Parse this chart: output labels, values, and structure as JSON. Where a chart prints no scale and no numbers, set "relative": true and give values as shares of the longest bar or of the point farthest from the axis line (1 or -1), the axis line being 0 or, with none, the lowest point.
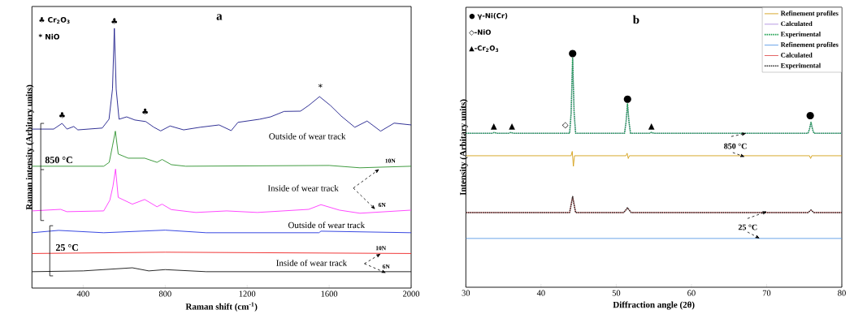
{
  "chart_data": [
    {
      "type": "line",
      "title": "a",
      "xlabel": "Raman shift (cm$^{-1}$)",
      "ylabel": "Raman intensity (Arbitary units)",
      "relative": true,
      "xlim": [
        150,
        2000
      ],
      "xticks": [
        400,
        800,
        1200,
        1600,
        2000
      ],
      "series": [
        {
          "color": "#1b1b8a",
          "x": [
            150,
            256,
            297,
            321,
            354,
            374,
            493,
            526,
            543,
            552,
            561,
            575,
            612,
            652,
            705,
            745,
            778,
            824,
            890,
            970,
            1063,
            1122,
            1155,
            1261,
            1314,
            1380,
            1460,
            1500,
            1553,
            1606,
            1659,
            1725,
            1785,
            1851,
            1917,
            2000
          ],
          "values": [
            0.612,
            0.612,
            0.634,
            0.612,
            0.622,
            0.609,
            0.616,
            0.65,
            0.766,
            1.0,
            0.766,
            0.65,
            0.659,
            0.647,
            0.641,
            0.619,
            0.605,
            0.624,
            0.609,
            0.619,
            0.628,
            0.606,
            0.638,
            0.65,
            0.659,
            0.68,
            0.681,
            0.703,
            0.737,
            0.703,
            0.662,
            0.619,
            0.643,
            0.604,
            0.635,
            0.628
          ]
        },
        {
          "color": "#2a8f2a",
          "x": [
            150,
            500,
            527,
            543,
            557,
            571,
            620,
            700,
            760,
            785,
            830,
            900,
            1600,
            1750,
            2000
          ],
          "values": [
            0.469,
            0.469,
            0.484,
            0.547,
            0.604,
            0.516,
            0.5,
            0.5,
            0.484,
            0.495,
            0.475,
            0.469,
            0.472,
            0.463,
            0.469
          ]
        },
        {
          "color": "#ff33ff",
          "x": [
            150,
            290,
            320,
            500,
            530,
            545,
            558,
            571,
            640,
            700,
            760,
            785,
            830,
            950,
            1100,
            1250,
            1500,
            1560,
            1650,
            1750,
            2000
          ],
          "values": [
            0.297,
            0.303,
            0.294,
            0.297,
            0.338,
            0.391,
            0.458,
            0.349,
            0.323,
            0.341,
            0.313,
            0.323,
            0.302,
            0.291,
            0.297,
            0.291,
            0.303,
            0.321,
            0.3,
            0.288,
            0.3
          ]
        },
        {
          "color": "#2233dd",
          "x": [
            150,
            280,
            500,
            800,
            1000,
            1550,
            1560,
            2000
          ],
          "values": [
            0.213,
            0.222,
            0.213,
            0.223,
            0.213,
            0.213,
            0.219,
            0.213
          ]
        },
        {
          "color": "#ee2222",
          "x": [
            150,
            800,
            2000
          ],
          "values": [
            0.133,
            0.138,
            0.133
          ]
        },
        {
          "color": "#111111",
          "x": [
            150,
            400,
            640,
            720,
            800,
            1000,
            2000
          ],
          "values": [
            0.063,
            0.066,
            0.078,
            0.066,
            0.071,
            0.063,
            0.063
          ]
        }
      ],
      "annotations": [
        "♣ Cr$_{2}$O$_{3}$",
        "* NiO",
        "850 °C",
        "25 °C",
        "♣",
        "♣",
        "♣",
        "*",
        "Outside of wear track",
        "Inside of wear track",
        "10N",
        "6N",
        "Outside of wear track",
        "10N",
        "Inside of wear track",
        "6N"
      ]
    },
    {
      "type": "line",
      "title": "b",
      "xlabel": "Diffraction angle (2θ)",
      "ylabel": "Intensity (Arbitary units)",
      "relative": true,
      "xlim": [
        30,
        80
      ],
      "xticks": [
        30,
        40,
        50,
        60,
        70,
        80
      ],
      "legend": "top right",
      "series": [
        {
          "name": "Refinement profiles",
          "color": "#d4a017",
          "line_style": "solid",
          "x": [
            30,
            44.0,
            44.15,
            44.3,
            44.45,
            51.3,
            51.45,
            51.6,
            51.75,
            75.7,
            75.85,
            76.0,
            80
          ],
          "values": [
            0.574,
            0.574,
            0.593,
            0.528,
            0.574,
            0.574,
            0.585,
            0.562,
            0.574,
            0.574,
            0.562,
            0.574,
            0.574
          ]
        },
        {
          "name": "Calculated",
          "color": "#b08fe0",
          "line_style": "solid",
          "x": [
            30,
            33.5,
            33.8,
            34.1,
            35.7,
            36.0,
            36.3,
            43.8,
            44.0,
            44.2,
            44.4,
            44.6,
            51.1,
            51.3,
            51.5,
            51.7,
            51.9,
            54.4,
            54.7,
            55.0,
            75.5,
            75.7,
            75.9,
            76.1,
            76.3,
            80
          ],
          "values": [
            0.672,
            0.672,
            0.676,
            0.672,
            0.672,
            0.676,
            0.672,
            0.672,
            0.76,
            1.0,
            0.76,
            0.672,
            0.672,
            0.72,
            0.8,
            0.72,
            0.672,
            0.672,
            0.676,
            0.672,
            0.672,
            0.69,
            0.72,
            0.69,
            0.672,
            0.672
          ]
        },
        {
          "name": "Experimental",
          "color": "#1fa050",
          "line_style": "dotted",
          "x": [
            30,
            33.5,
            33.8,
            34.1,
            35.7,
            36.0,
            36.3,
            43.8,
            44.0,
            44.2,
            44.4,
            44.6,
            51.1,
            51.3,
            51.5,
            51.7,
            51.9,
            54.4,
            54.7,
            55.0,
            75.5,
            75.7,
            75.9,
            76.1,
            76.3,
            80
          ],
          "values": [
            0.672,
            0.672,
            0.676,
            0.672,
            0.672,
            0.676,
            0.672,
            0.672,
            0.76,
            1.0,
            0.76,
            0.672,
            0.672,
            0.72,
            0.8,
            0.72,
            0.672,
            0.672,
            0.676,
            0.672,
            0.672,
            0.69,
            0.72,
            0.69,
            0.672,
            0.672
          ]
        },
        {
          "name": "Refinement profiles",
          "color": "#5b9ae6",
          "line_style": "solid",
          "x": [
            30,
            80
          ],
          "values": [
            0.213,
            0.213
          ]
        },
        {
          "name": "Calculated",
          "color": "#e05050",
          "line_style": "solid",
          "x": [
            30,
            43.8,
            44.0,
            44.2,
            44.4,
            44.6,
            51.0,
            51.3,
            51.5,
            51.7,
            52.0,
            75.5,
            75.9,
            76.3,
            80
          ],
          "values": [
            0.326,
            0.326,
            0.36,
            0.396,
            0.36,
            0.326,
            0.326,
            0.338,
            0.347,
            0.338,
            0.326,
            0.326,
            0.337,
            0.326,
            0.326
          ]
        },
        {
          "name": "Experimental",
          "color": "#303030",
          "line_style": "dotted",
          "x": [
            30,
            43.8,
            44.0,
            44.2,
            44.4,
            44.6,
            51.0,
            51.3,
            51.5,
            51.7,
            52.0,
            75.5,
            75.9,
            76.3,
            80
          ],
          "values": [
            0.326,
            0.326,
            0.36,
            0.396,
            0.36,
            0.326,
            0.326,
            0.338,
            0.347,
            0.338,
            0.326,
            0.326,
            0.337,
            0.326,
            0.326
          ]
        }
      ],
      "annotations": [
        "● γ-Ni(Cr)",
        "◇-NiO",
        "▲-Cr$_{2}$O$_{3}$",
        "850 °C",
        "25 °C",
        "●",
        "●",
        "●",
        "◇",
        "▲",
        "▲",
        "▲"
      ]
    }
  ]
}
